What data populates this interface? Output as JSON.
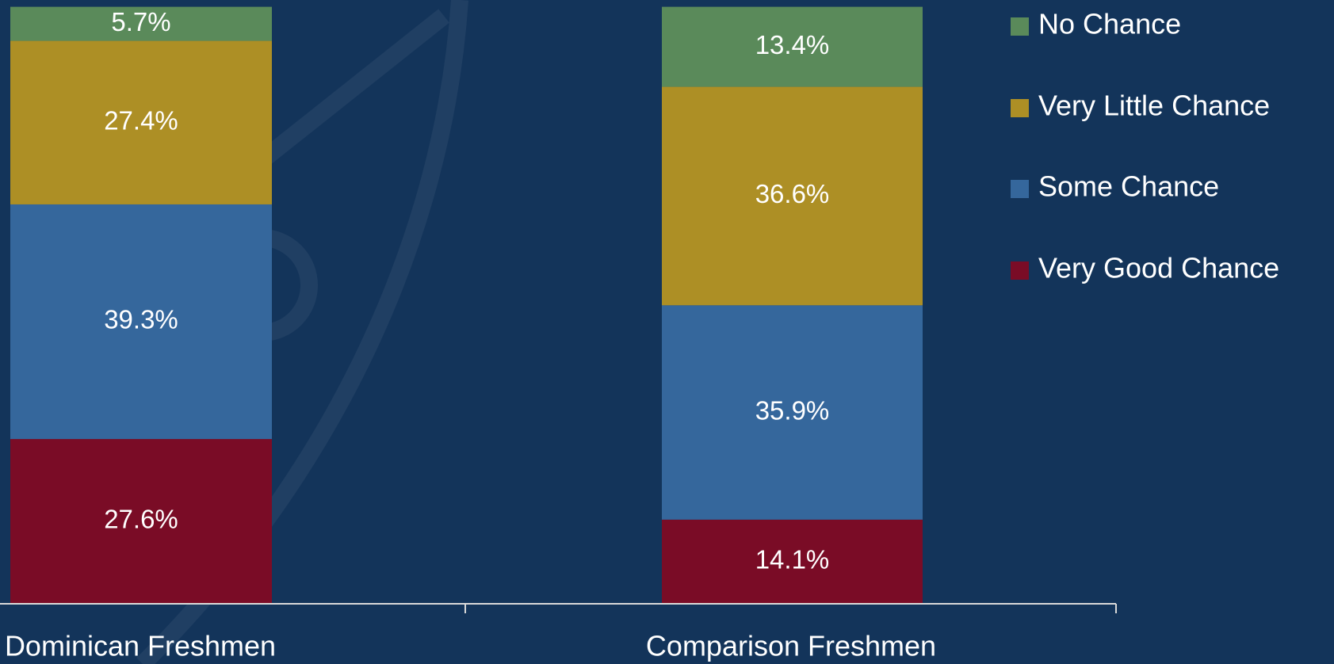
{
  "chart_data": {
    "type": "stacked_bar",
    "categories": [
      "Dominican Freshmen",
      "Comparison Freshmen"
    ],
    "ylim": [
      0,
      100
    ],
    "series": [
      {
        "name": "Very Good Chance",
        "color": "#7a0c26",
        "values": [
          27.6,
          14.1
        ],
        "value_labels": [
          "27.6%",
          "14.1%"
        ]
      },
      {
        "name": "Some Chance",
        "color": "#35679c",
        "values": [
          39.3,
          35.9
        ],
        "value_labels": [
          "39.3%",
          "35.9%"
        ]
      },
      {
        "name": "Very Little Chance",
        "color": "#ad8f25",
        "values": [
          27.4,
          36.6
        ],
        "value_labels": [
          "27.4%",
          "36.6%"
        ]
      },
      {
        "name": "No Chance",
        "color": "#5a8a5a",
        "values": [
          5.7,
          13.4
        ],
        "value_labels": [
          "5.7%",
          "13.4%"
        ]
      }
    ]
  }
}
